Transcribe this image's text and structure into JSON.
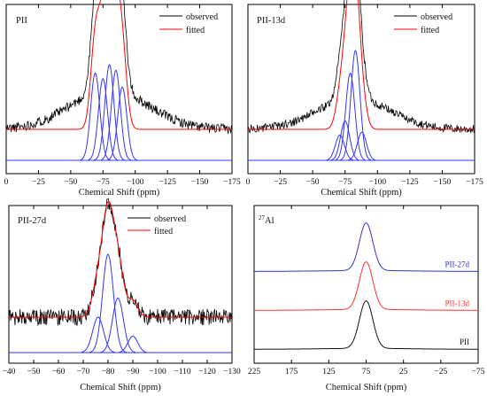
{
  "chart_data": [
    {
      "type": "line",
      "panel_label": "PII",
      "xlabel": "Chemical Shift (ppm)",
      "xlim": [
        0,
        -175
      ],
      "xticks": [
        0,
        -25,
        -50,
        -75,
        -100,
        -125,
        -150,
        -175
      ],
      "tick_labels": [
        "0",
        "−25",
        "−50",
        "−75",
        "−100",
        "−125",
        "−150",
        "−175"
      ],
      "legend": [
        {
          "name": "observed",
          "color": "#000000"
        },
        {
          "name": "fitted",
          "color": "#ff0000"
        }
      ],
      "legend_position": "top-right",
      "observed": {
        "baseline": 0.22,
        "noise": 0.035,
        "components": [
          {
            "center": -69,
            "height": 0.62,
            "width": 3.5
          },
          {
            "center": -75,
            "height": 0.58,
            "width": 3.5
          },
          {
            "center": -80,
            "height": 0.68,
            "width": 3.5
          },
          {
            "center": -85,
            "height": 0.64,
            "width": 3.5
          },
          {
            "center": -90,
            "height": 0.52,
            "width": 3.5
          },
          {
            "center": -80,
            "height": 0.28,
            "width": 30
          }
        ]
      },
      "fitted": {
        "baseline": 0.22,
        "components": [
          {
            "center": -69,
            "height": 0.62,
            "width": 3.5
          },
          {
            "center": -75,
            "height": 0.58,
            "width": 3.5
          },
          {
            "center": -80,
            "height": 0.68,
            "width": 3.5
          },
          {
            "center": -85,
            "height": 0.64,
            "width": 3.5
          },
          {
            "center": -90,
            "height": 0.52,
            "width": 3.5
          }
        ]
      },
      "deconvolved": {
        "baseline": 0.0,
        "components": [
          {
            "center": -69,
            "height": 0.62,
            "width": 3.5
          },
          {
            "center": -75,
            "height": 0.58,
            "width": 3.5
          },
          {
            "center": -80,
            "height": 0.68,
            "width": 3.5
          },
          {
            "center": -85,
            "height": 0.64,
            "width": 3.5
          },
          {
            "center": -90,
            "height": 0.52,
            "width": 3.5
          }
        ]
      }
    },
    {
      "type": "line",
      "panel_label": "PII-13d",
      "xlabel": "Chemical Shift (ppm)",
      "xlim": [
        0,
        -175
      ],
      "xticks": [
        0,
        -25,
        -50,
        -75,
        -100,
        -125,
        -150,
        -175
      ],
      "tick_labels": [
        "0",
        "−25",
        "−50",
        "−75",
        "−100",
        "−125",
        "−150",
        "−175"
      ],
      "legend": [
        {
          "name": "observed",
          "color": "#000000"
        },
        {
          "name": "fitted",
          "color": "#ff0000"
        }
      ],
      "legend_position": "top-right",
      "observed": {
        "baseline": 0.22,
        "noise": 0.03,
        "components": [
          {
            "center": -71,
            "height": 0.18,
            "width": 3.5
          },
          {
            "center": -75,
            "height": 0.28,
            "width": 3.5
          },
          {
            "center": -79,
            "height": 0.62,
            "width": 3.5
          },
          {
            "center": -83,
            "height": 0.78,
            "width": 3.5
          },
          {
            "center": -88,
            "height": 0.2,
            "width": 3.5
          },
          {
            "center": -82,
            "height": 0.22,
            "width": 28
          }
        ]
      },
      "fitted": {
        "baseline": 0.22,
        "components": [
          {
            "center": -71,
            "height": 0.18,
            "width": 3.5
          },
          {
            "center": -75,
            "height": 0.28,
            "width": 3.5
          },
          {
            "center": -79,
            "height": 0.62,
            "width": 3.5
          },
          {
            "center": -83,
            "height": 0.78,
            "width": 3.5
          },
          {
            "center": -88,
            "height": 0.2,
            "width": 3.5
          }
        ]
      },
      "deconvolved": {
        "baseline": 0.0,
        "components": [
          {
            "center": -71,
            "height": 0.18,
            "width": 3.5
          },
          {
            "center": -75,
            "height": 0.28,
            "width": 3.5
          },
          {
            "center": -79,
            "height": 0.62,
            "width": 3.5
          },
          {
            "center": -83,
            "height": 0.78,
            "width": 3.5
          },
          {
            "center": -88,
            "height": 0.2,
            "width": 3.5
          }
        ]
      }
    },
    {
      "type": "line",
      "panel_label": "PII-27d",
      "xlabel": "Chemical Shift (ppm)",
      "xlim": [
        -40,
        -130
      ],
      "xticks": [
        -40,
        -50,
        -60,
        -70,
        -80,
        -90,
        -100,
        -110,
        -120,
        -130
      ],
      "tick_labels": [
        "−40",
        "−50",
        "−60",
        "−70",
        "−80",
        "−90",
        "−100",
        "−110",
        "−120",
        "−130"
      ],
      "legend": [
        {
          "name": "observed",
          "color": "#000000"
        },
        {
          "name": "fitted",
          "color": "#ff0000"
        }
      ],
      "legend_position": "top-right",
      "observed": {
        "baseline": 0.26,
        "noise": 0.06,
        "components": [
          {
            "center": -76,
            "height": 0.26,
            "width": 2.2
          },
          {
            "center": -80,
            "height": 0.72,
            "width": 2.2
          },
          {
            "center": -84,
            "height": 0.4,
            "width": 2.2
          },
          {
            "center": -90,
            "height": 0.12,
            "width": 2.0
          }
        ]
      },
      "fitted": {
        "baseline": 0.26,
        "components": [
          {
            "center": -76,
            "height": 0.26,
            "width": 2.2
          },
          {
            "center": -80,
            "height": 0.72,
            "width": 2.2
          },
          {
            "center": -84,
            "height": 0.4,
            "width": 2.2
          },
          {
            "center": -90,
            "height": 0.12,
            "width": 2.0
          }
        ]
      },
      "deconvolved": {
        "baseline": 0.0,
        "components": [
          {
            "center": -76,
            "height": 0.26,
            "width": 2.2
          },
          {
            "center": -80,
            "height": 0.72,
            "width": 2.2
          },
          {
            "center": -84,
            "height": 0.4,
            "width": 2.2
          },
          {
            "center": -90,
            "height": 0.12,
            "width": 2.0
          }
        ]
      }
    },
    {
      "type": "line",
      "panel_label_sup": "27",
      "panel_label": "Al",
      "xlabel": "Chemical Shift (ppm)",
      "xlim": [
        225,
        -75
      ],
      "xticks": [
        225,
        175,
        125,
        75,
        25,
        -25,
        -75
      ],
      "tick_labels": [
        "225",
        "175",
        "125",
        "75",
        "25",
        "−25",
        "−75"
      ],
      "series": [
        {
          "name": "PII-27d",
          "color": "#3333cc",
          "offset": 1.0,
          "center": 75,
          "height": 0.55,
          "width": 9
        },
        {
          "name": "PII-13d",
          "color": "#ff3333",
          "offset": 0.55,
          "center": 75,
          "height": 0.55,
          "width": 9
        },
        {
          "name": "PII",
          "color": "#111111",
          "offset": 0.1,
          "center": 75,
          "height": 0.55,
          "width": 9
        }
      ]
    }
  ]
}
